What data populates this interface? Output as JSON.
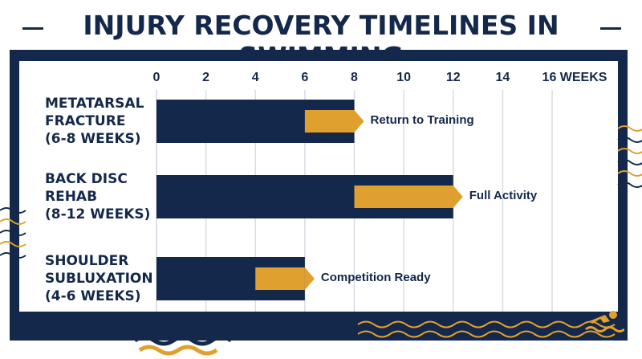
{
  "title": "INJURY RECOVERY TIMELINES IN SWIMMING",
  "colors": {
    "navy": "#14284b",
    "gold": "#e0a030",
    "grid": "#d8dce3"
  },
  "icons": [
    "swimmer-icon",
    "swimmer-icon-small",
    "wave-decoration"
  ],
  "chart_data": {
    "type": "bar",
    "orientation": "horizontal",
    "title": "INJURY RECOVERY TIMELINES IN SWIMMING",
    "xlim": [
      0,
      16
    ],
    "x_ticks": [
      "0",
      "2",
      "4",
      "6",
      "8",
      "10",
      "12",
      "14",
      "16 WEEKS"
    ],
    "grid": true,
    "categories": [
      "METATARSAL\nFRACTURE\n(6-8 WEEKS)",
      "BACK DISC\nREHAB\n(8-12 WEEKS)",
      "SHOULDER\nSUBLUXATION\n(4-6 WEEKS)"
    ],
    "series": [
      {
        "values": [
          6,
          8,
          4
        ],
        "color": "#14284b"
      },
      {
        "values": [
          8,
          12,
          6
        ],
        "color": "#e0a030"
      }
    ],
    "milestones": [
      "Return to Training",
      "Full Activity",
      "Competition Ready"
    ]
  }
}
